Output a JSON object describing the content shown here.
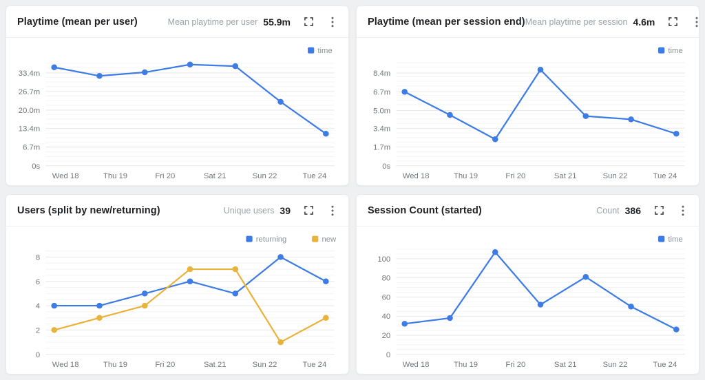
{
  "ui": {
    "expand_icon": "expand-fullscreen-icon",
    "menu_icon": "kebab-menu-icon",
    "legend_swatch_icon": "legend-square-icon"
  },
  "colors": {
    "accent_blue": "#3D7BE5",
    "accent_yellow": "#E9B239",
    "grid_major": "#e7e7e7",
    "grid_minor": "#f4f4f4",
    "tick_text": "#71767b",
    "legend_text": "#8a9097",
    "card_bg": "#ffffff",
    "page_bg": "#eef0f2"
  },
  "cards": [
    {
      "title": "Playtime (mean per user)",
      "stat_label": "Mean playtime per user",
      "stat_value": "55.9m"
    },
    {
      "title": "Playtime (mean per session end)",
      "stat_label": "Mean playtime per session",
      "stat_value": "4.6m"
    },
    {
      "title": "Users (split by new/returning)",
      "stat_label": "Unique users",
      "stat_value": "39"
    },
    {
      "title": "Session Count (started)",
      "stat_label": "Count",
      "stat_value": "386"
    }
  ],
  "chart_data": [
    {
      "type": "line",
      "title": "Playtime (mean per user)",
      "x_labels": [
        "Wed 18",
        "Thu 19",
        "Fri 20",
        "Sat 21",
        "Sun 22",
        "Tue 24"
      ],
      "y_ticks": [
        {
          "label": "0s",
          "v": 0
        },
        {
          "label": "6.7m",
          "v": 6.7
        },
        {
          "label": "13.4m",
          "v": 13.4
        },
        {
          "label": "20.0m",
          "v": 20.0
        },
        {
          "label": "26.7m",
          "v": 26.7
        },
        {
          "label": "33.4m",
          "v": 33.4
        }
      ],
      "ylim": [
        0,
        38.5
      ],
      "unit": "minutes",
      "series": [
        {
          "name": "time",
          "color": "#3D7BE5",
          "values": [
            35.4,
            32.3,
            33.6,
            36.4,
            35.8,
            23.0,
            11.5
          ]
        }
      ]
    },
    {
      "type": "line",
      "title": "Playtime (mean per session end)",
      "x_labels": [
        "Wed 18",
        "Thu 19",
        "Fri 20",
        "Sat 21",
        "Sun 22",
        "Tue 24"
      ],
      "y_ticks": [
        {
          "label": "0s",
          "v": 0
        },
        {
          "label": "1.7m",
          "v": 1.7
        },
        {
          "label": "3.4m",
          "v": 3.4
        },
        {
          "label": "5.0m",
          "v": 5.0
        },
        {
          "label": "6.7m",
          "v": 6.7
        },
        {
          "label": "8.4m",
          "v": 8.4
        }
      ],
      "ylim": [
        0,
        9.7
      ],
      "unit": "minutes",
      "series": [
        {
          "name": "time",
          "color": "#3D7BE5",
          "values": [
            6.7,
            4.6,
            2.4,
            8.7,
            4.5,
            4.2,
            2.9
          ]
        }
      ]
    },
    {
      "type": "line",
      "title": "Users (split by new/returning)",
      "x_labels": [
        "Wed 18",
        "Thu 19",
        "Fri 20",
        "Sat 21",
        "Sun 22",
        "Tue 24"
      ],
      "y_ticks": [
        {
          "label": "0",
          "v": 0
        },
        {
          "label": "2",
          "v": 2
        },
        {
          "label": "4",
          "v": 4
        },
        {
          "label": "6",
          "v": 6
        },
        {
          "label": "8",
          "v": 8
        }
      ],
      "ylim": [
        0,
        8.8
      ],
      "unit": "users",
      "series": [
        {
          "name": "returning",
          "color": "#3D7BE5",
          "values": [
            4,
            4,
            5,
            6,
            5,
            8,
            6
          ]
        },
        {
          "name": "new",
          "color": "#E9B239",
          "values": [
            2,
            3,
            4,
            7,
            7,
            1,
            3
          ]
        }
      ]
    },
    {
      "type": "line",
      "title": "Session Count (started)",
      "x_labels": [
        "Wed 18",
        "Thu 19",
        "Fri 20",
        "Sat 21",
        "Sun 22",
        "Tue 24"
      ],
      "y_ticks": [
        {
          "label": "0",
          "v": 0
        },
        {
          "label": "20",
          "v": 20
        },
        {
          "label": "40",
          "v": 40
        },
        {
          "label": "60",
          "v": 60
        },
        {
          "label": "80",
          "v": 80
        },
        {
          "label": "100",
          "v": 100
        }
      ],
      "ylim": [
        0,
        112
      ],
      "unit": "sessions",
      "series": [
        {
          "name": "time",
          "color": "#3D7BE5",
          "values": [
            32,
            38,
            107,
            52,
            81,
            50,
            26
          ]
        }
      ]
    }
  ]
}
